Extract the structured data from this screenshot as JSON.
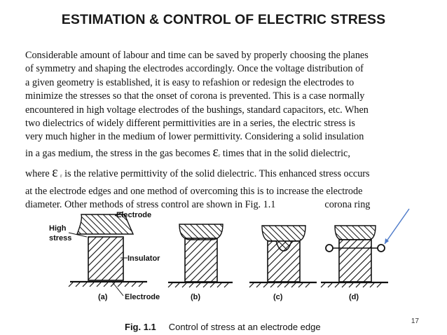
{
  "slide": {
    "title": "ESTIMATION & CONTROL OF ELECTRIC STRESS",
    "lines": [
      "Considerable amount of labour and time can be saved by properly choosing the planes",
      "of symmetry and shaping the electrodes accordingly. Once the voltage distribution of",
      "a given geometry is established, it is easy to refashion or redesign the electrodes to",
      "minimize the stresses so that the onset of corona is prevented. This is a case normally",
      "encountered in high voltage electrodes of the bushings, standard capacitors, etc. When",
      "two dielectrics of widely different permittivities are in a series, the electric stress is",
      "very much higher in the medium of lower permittivity. Considering a solid insulation"
    ],
    "line8_pre": "in a gas medium, the stress in the gas becomes ",
    "epsilon_symbol": "ε",
    "subscript_r": "r",
    "line8_post": " times that in the solid dielectric,",
    "line9_pre": "where ",
    "line9_post": "is the relative permittivity of the solid dielectric. This enhanced stress occurs",
    "line10": "at the electrode edges and one method of overcoming this is to increase the electrode",
    "line11_text": "diameter. Other methods of stress control are shown in Fig. 1.1",
    "corona_ring_label": "corona ring",
    "page_number": "17"
  },
  "figure": {
    "labels": {
      "electrode_top": "Electrode",
      "high": "High",
      "stress": "stress",
      "insulator": "Insulator",
      "electrode_bottom": "Electrode"
    },
    "panels": [
      "(a)",
      "(b)",
      "(c)",
      "(d)"
    ],
    "caption_num": "Fig. 1.1",
    "caption_text": "Control of stress at an electrode edge"
  },
  "colors": {
    "title": "#1a1a1a",
    "text": "#111111",
    "arrow": "#4a78c8"
  }
}
